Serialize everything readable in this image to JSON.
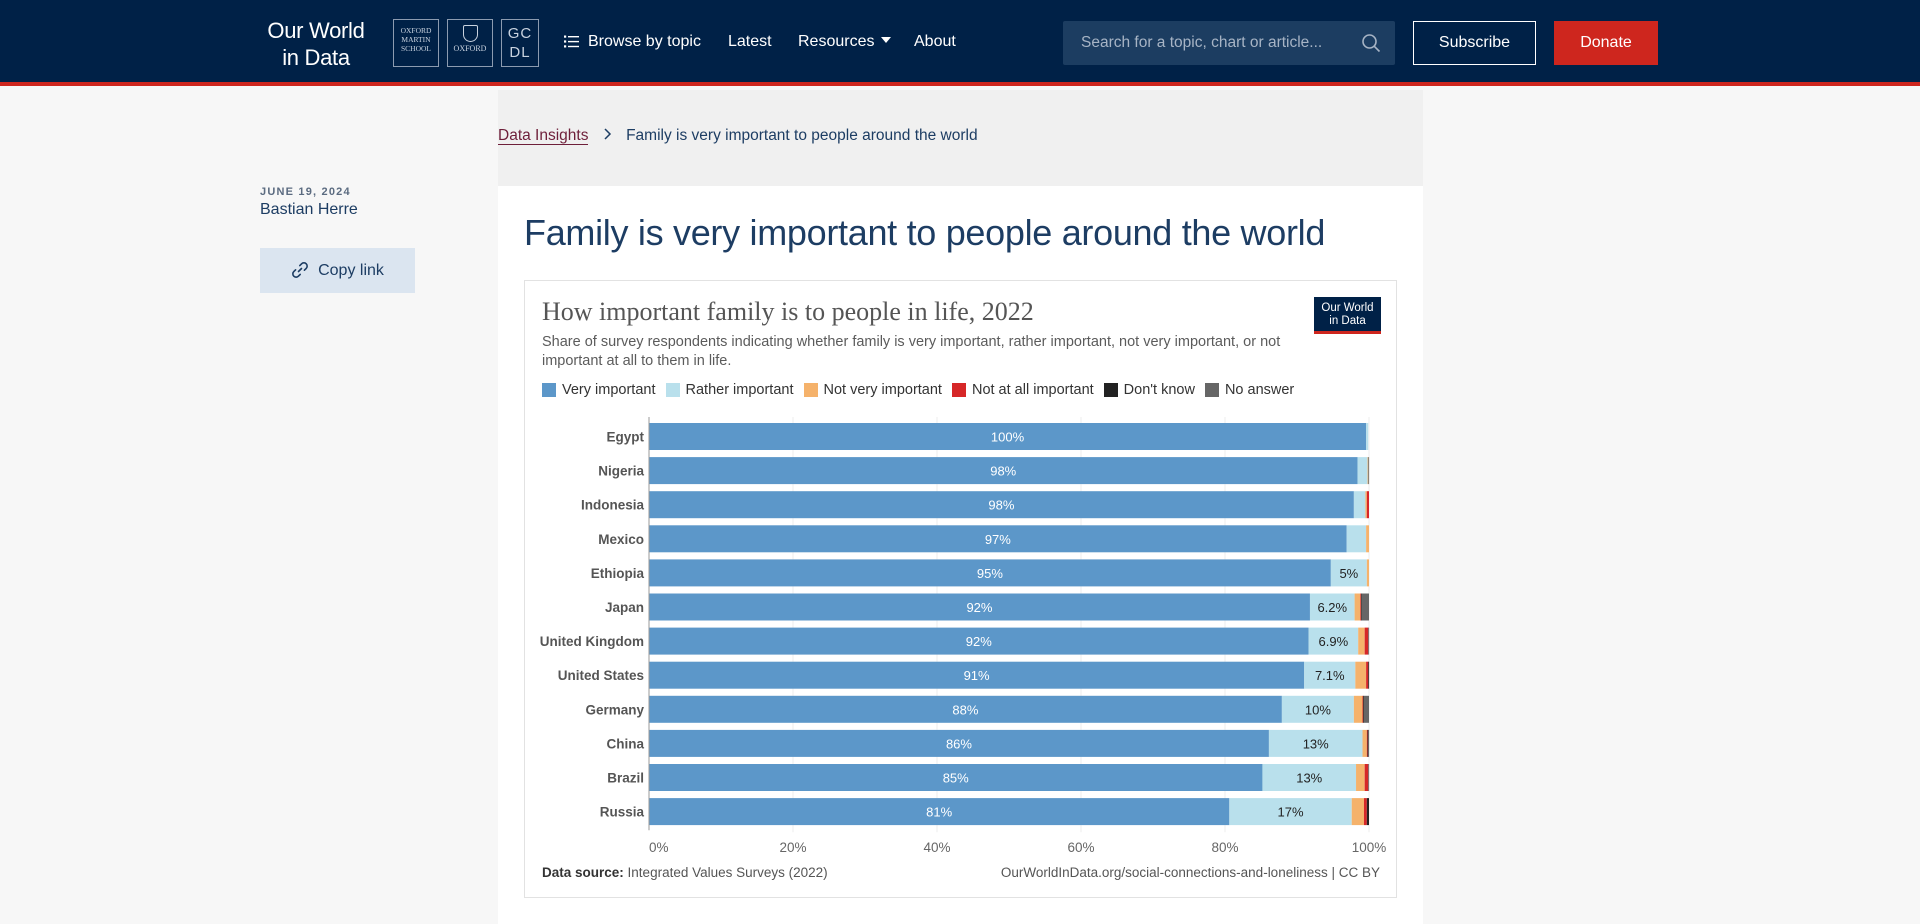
{
  "header": {
    "logo_line1": "Our World",
    "logo_line2": "in Data",
    "partners": {
      "oms": [
        "OXFORD",
        "MARTIN",
        "SCHOOL"
      ],
      "oxford": "OXFORD",
      "gcdl": [
        "GC",
        "DL"
      ]
    },
    "nav": {
      "browse": "Browse by topic",
      "latest": "Latest",
      "resources": "Resources",
      "about": "About"
    },
    "search_placeholder": "Search for a topic, chart or article...",
    "subscribe": "Subscribe",
    "donate": "Donate"
  },
  "breadcrumb": {
    "parent": "Data Insights",
    "current": "Family is very important to people around the world"
  },
  "meta": {
    "date": "JUNE 19, 2024",
    "author": "Bastian Herre",
    "copy_link": "Copy link"
  },
  "article": {
    "title": "Family is very important to people around the world"
  },
  "chart_data": {
    "type": "bar",
    "orientation": "horizontal",
    "stacked": true,
    "title": "How important family is to people in life, 2022",
    "subtitle": "Share of survey respondents indicating whether family is very important, rather important, not very important, or not important at all to them in life.",
    "badge": [
      "Our World",
      "in Data"
    ],
    "categories": [
      "Egypt",
      "Nigeria",
      "Indonesia",
      "Mexico",
      "Ethiopia",
      "Japan",
      "United Kingdom",
      "United States",
      "Germany",
      "China",
      "Brazil",
      "Russia"
    ],
    "series": [
      {
        "name": "Very important",
        "color": "#5c97c9",
        "values": [
          99.6,
          98.4,
          97.9,
          96.9,
          94.7,
          91.8,
          91.6,
          91.0,
          87.9,
          86.1,
          85.2,
          80.6
        ],
        "labels": [
          "100%",
          "98%",
          "98%",
          "97%",
          "95%",
          "92%",
          "92%",
          "91%",
          "88%",
          "86%",
          "85%",
          "81%"
        ]
      },
      {
        "name": "Rather important",
        "color": "#b9e0ec",
        "values": [
          0.3,
          1.4,
          1.6,
          2.7,
          5.0,
          6.2,
          6.9,
          7.1,
          10.0,
          13.0,
          13.0,
          17.0
        ],
        "labels": [
          "",
          "",
          "",
          "",
          "5%",
          "6.2%",
          "6.9%",
          "7.1%",
          "10%",
          "13%",
          "13%",
          "17%"
        ]
      },
      {
        "name": "Not very important",
        "color": "#f5b26b",
        "values": [
          0,
          0.1,
          0.2,
          0.4,
          0.3,
          0.8,
          0.9,
          1.5,
          1.2,
          0.6,
          1.2,
          1.7
        ]
      },
      {
        "name": "Not at all important",
        "color": "#d62728",
        "values": [
          0,
          0,
          0.3,
          0,
          0,
          0.1,
          0.5,
          0.3,
          0.1,
          0.1,
          0.5,
          0.4
        ]
      },
      {
        "name": "Don't know",
        "color": "#222222",
        "values": [
          0,
          0,
          0,
          0,
          0,
          0.1,
          0,
          0.1,
          0.1,
          0.1,
          0,
          0.3
        ]
      },
      {
        "name": "No answer",
        "color": "#666666",
        "values": [
          0,
          0.1,
          0,
          0,
          0,
          1.0,
          0.1,
          0,
          0.7,
          0.1,
          0.1,
          0
        ]
      }
    ],
    "xlim": [
      0,
      100
    ],
    "xticks": [
      "0%",
      "20%",
      "40%",
      "60%",
      "80%",
      "100%"
    ],
    "source_label": "Data source:",
    "source": "Integrated Values Surveys (2022)",
    "url": "OurWorldInData.org/social-connections-and-loneliness | CC BY"
  }
}
